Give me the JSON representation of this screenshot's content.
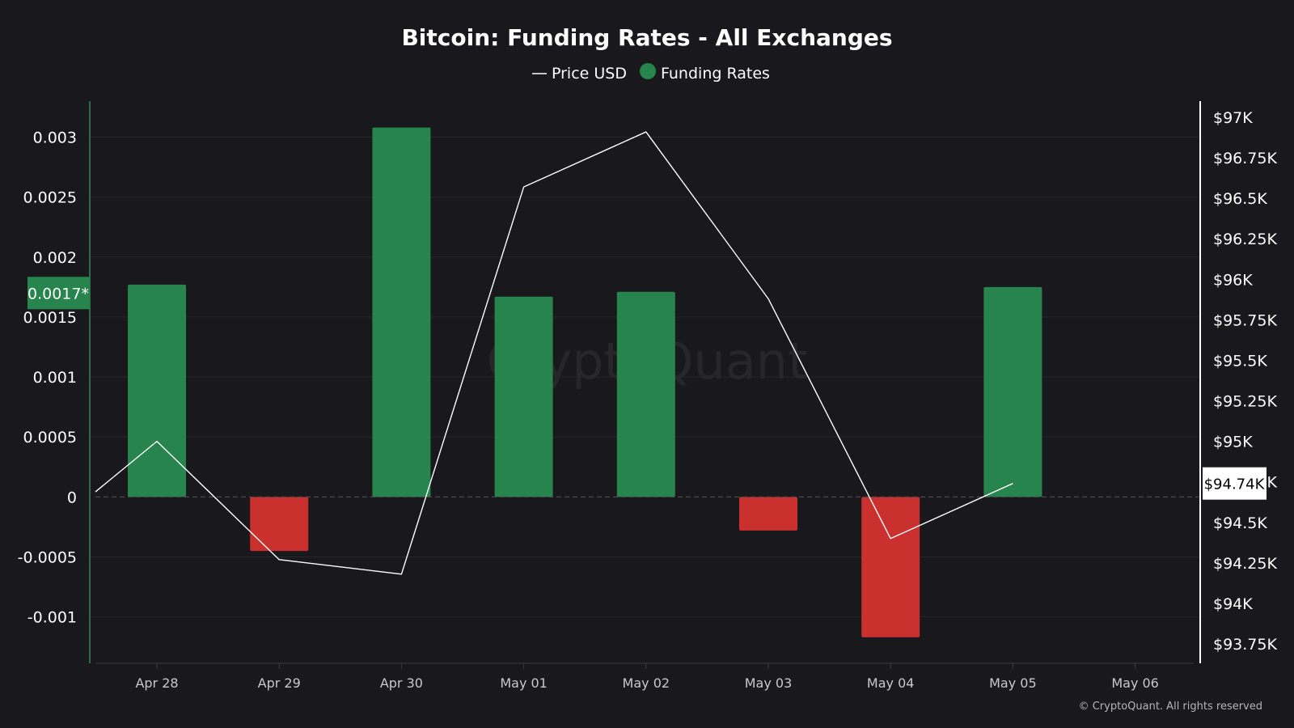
{
  "watermark": "CryptoQuant",
  "copyright": "© CryptoQuant. All rights reserved",
  "chart_data": {
    "type": "bar",
    "title": "Bitcoin: Funding Rates - All Exchanges",
    "legend": {
      "placement": "top-center",
      "items": [
        {
          "label": "Price USD",
          "symbol": "line",
          "color": "#ffffff"
        },
        {
          "label": "Funding Rates",
          "symbol": "dot",
          "color": "#27844c"
        }
      ]
    },
    "x": [
      "Apr 28",
      "Apr 29",
      "Apr 30",
      "May 01",
      "May 02",
      "May 03",
      "May 04",
      "May 05"
    ],
    "x_tick_labels": [
      "Apr 28",
      "Apr 29",
      "Apr 30",
      "May 01",
      "May 02",
      "May 03",
      "May 04",
      "May 05",
      "May 06"
    ],
    "series": [
      {
        "name": "Funding Rates",
        "axis": "left",
        "kind": "bar",
        "positive_color": "#27844c",
        "negative_color": "#c9302e",
        "values": [
          0.00177,
          -0.00045,
          0.00308,
          0.00167,
          0.00171,
          -0.00028,
          -0.00117,
          0.00175
        ]
      },
      {
        "name": "Price USD",
        "axis": "right",
        "kind": "line",
        "color": "#ffffff",
        "points": [
          {
            "x": "Apr 27",
            "y": 94380
          },
          {
            "x": "Apr 28",
            "y": 95000
          },
          {
            "x": "Apr 29",
            "y": 94270
          },
          {
            "x": "Apr 30",
            "y": 94180
          },
          {
            "x": "May 01",
            "y": 96570
          },
          {
            "x": "May 02",
            "y": 96910
          },
          {
            "x": "May 03",
            "y": 95880
          },
          {
            "x": "May 04",
            "y": 94400
          },
          {
            "x": "May 05",
            "y": 94740
          }
        ]
      }
    ],
    "left_axis": {
      "ticks": [
        -0.001,
        -0.0005,
        0,
        0.0005,
        0.001,
        0.0015,
        0.002,
        0.0025,
        0.003
      ],
      "tick_labels": [
        "-0.001",
        "-0.0005",
        "0",
        "0.0005",
        "0.001",
        "0.0015",
        "0.002",
        "0.0025",
        "0.003"
      ],
      "range": [
        -0.00138,
        0.0033
      ]
    },
    "right_axis": {
      "ticks": [
        93750,
        94000,
        94250,
        94500,
        94750,
        95000,
        95250,
        95500,
        95750,
        96000,
        96250,
        96500,
        96750,
        97000
      ],
      "tick_labels": [
        "$93.75K",
        "$94K",
        "$94.25K",
        "$94.5K",
        "$94.75K",
        "$95K",
        "$95.25K",
        "$95.5K",
        "$95.75K",
        "$96K",
        "$96.25K",
        "$96.5K",
        "$96.75K",
        "$97K"
      ],
      "range": [
        93635,
        97100
      ]
    },
    "current_markers": {
      "funding_rate_label": "0.0017*",
      "funding_rate_value": 0.0017,
      "price_label": "$94.74K",
      "price_value": 94740
    },
    "grid": true,
    "zero_line": "dashed"
  }
}
